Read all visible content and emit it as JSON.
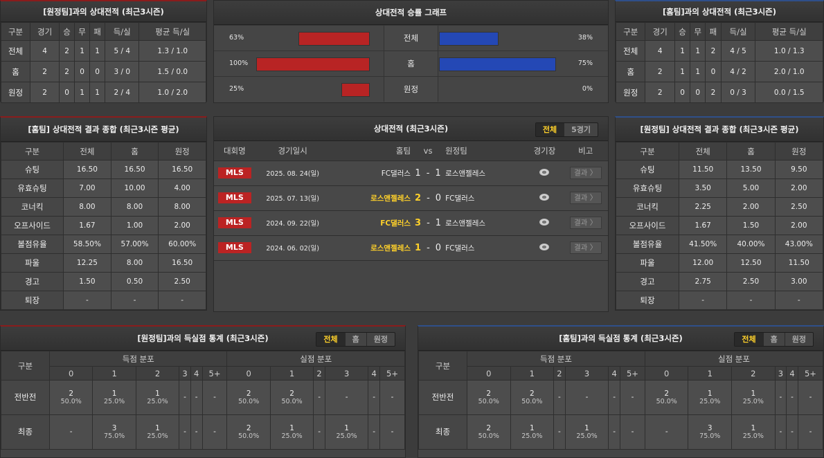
{
  "away_record": {
    "title": "[원정팀]과의 상대전적 (최근3시즌)",
    "headers": [
      "구분",
      "경기",
      "승",
      "무",
      "패",
      "득/실",
      "평균 득/실"
    ],
    "rows": [
      [
        "전체",
        "4",
        "2",
        "1",
        "1",
        "5 / 4",
        "1.3 / 1.0"
      ],
      [
        "홈",
        "2",
        "2",
        "0",
        "0",
        "3 / 0",
        "1.5 / 0.0"
      ],
      [
        "원정",
        "2",
        "0",
        "1",
        "1",
        "2 / 4",
        "1.0 / 2.0"
      ]
    ]
  },
  "home_record": {
    "title": "[홈팀]과의 상대전적 (최근3시즌)",
    "headers": [
      "구분",
      "경기",
      "승",
      "무",
      "패",
      "득/실",
      "평균 득/실"
    ],
    "rows": [
      [
        "전체",
        "4",
        "1",
        "1",
        "2",
        "4 / 5",
        "1.0 / 1.3"
      ],
      [
        "홈",
        "2",
        "1",
        "1",
        "0",
        "4 / 2",
        "2.0 / 1.0"
      ],
      [
        "원정",
        "2",
        "0",
        "0",
        "2",
        "0 / 3",
        "0.0 / 1.5"
      ]
    ]
  },
  "win_graph": {
    "title": "상대전적 승률 그래프",
    "colors": {
      "left": "#b82424",
      "right": "#2448b5"
    },
    "rows": [
      {
        "label": "전체",
        "left": 63,
        "left_text": "63%",
        "right": 38,
        "right_text": "38%"
      },
      {
        "label": "홈",
        "left": 100,
        "left_text": "100%",
        "right": 75,
        "right_text": "75%"
      },
      {
        "label": "원정",
        "left": 25,
        "left_text": "25%",
        "right": 0,
        "right_text": "0%"
      }
    ]
  },
  "home_summary": {
    "title": "[홈팀] 상대전적 결과 종합 (최근3시즌 평균)",
    "headers": [
      "구분",
      "전체",
      "홈",
      "원정"
    ],
    "rows": [
      [
        "슈팅",
        "16.50",
        "16.50",
        "16.50"
      ],
      [
        "유효슈팅",
        "7.00",
        "10.00",
        "4.00"
      ],
      [
        "코너킥",
        "8.00",
        "8.00",
        "8.00"
      ],
      [
        "오프사이드",
        "1.67",
        "1.00",
        "2.00"
      ],
      [
        "볼점유율",
        "58.50%",
        "57.00%",
        "60.00%"
      ],
      [
        "파울",
        "12.25",
        "8.00",
        "16.50"
      ],
      [
        "경고",
        "1.50",
        "0.50",
        "2.50"
      ],
      [
        "퇴장",
        "-",
        "-",
        "-"
      ]
    ]
  },
  "away_summary": {
    "title": "[원정팀] 상대전적 결과 종합 (최근3시즌 평균)",
    "headers": [
      "구분",
      "전체",
      "홈",
      "원정"
    ],
    "rows": [
      [
        "슈팅",
        "11.50",
        "13.50",
        "9.50"
      ],
      [
        "유효슈팅",
        "3.50",
        "5.00",
        "2.00"
      ],
      [
        "코너킥",
        "2.25",
        "2.00",
        "2.50"
      ],
      [
        "오프사이드",
        "1.67",
        "1.50",
        "2.00"
      ],
      [
        "볼점유율",
        "41.50%",
        "40.00%",
        "43.00%"
      ],
      [
        "파울",
        "12.00",
        "12.50",
        "11.50"
      ],
      [
        "경고",
        "2.75",
        "2.50",
        "3.00"
      ],
      [
        "퇴장",
        "-",
        "-",
        "-"
      ]
    ]
  },
  "matches": {
    "title": "상대전적 (최근3시즌)",
    "tabs": [
      "전체",
      "5경기"
    ],
    "active_tab": 0,
    "headers": {
      "league": "대회명",
      "date": "경기일시",
      "home": "홈팀",
      "vs": "vs",
      "away": "원정팀",
      "stadium": "경기장",
      "note": "비고"
    },
    "result_label": "결과 〉",
    "rows": [
      {
        "league": "MLS",
        "date": "2025. 08. 24(일)",
        "home": "FC댈러스",
        "home_score": "1",
        "sep": "-",
        "away_score": "1",
        "away": "로스앤젤레스",
        "winner": "none"
      },
      {
        "league": "MLS",
        "date": "2025. 07. 13(일)",
        "home": "로스앤젤레스",
        "home_score": "2",
        "sep": "-",
        "away_score": "0",
        "away": "FC댈러스",
        "winner": "home"
      },
      {
        "league": "MLS",
        "date": "2024. 09. 22(일)",
        "home": "FC댈러스",
        "home_score": "3",
        "sep": "-",
        "away_score": "1",
        "away": "로스앤젤레스",
        "winner": "home"
      },
      {
        "league": "MLS",
        "date": "2024. 06. 02(일)",
        "home": "로스앤젤레스",
        "home_score": "1",
        "sep": "-",
        "away_score": "0",
        "away": "FC댈러스",
        "winner": "home"
      }
    ]
  },
  "away_goals": {
    "title": "[원정팀]과의 득실점 통계 (최근3시즌)",
    "tabs": [
      "전체",
      "홈",
      "원정"
    ],
    "active_tab": 0,
    "label_header": "구분",
    "groups": [
      "득점 분포",
      "실점 분포"
    ],
    "buckets": [
      "0",
      "1",
      "2",
      "3",
      "4",
      "5+",
      "0",
      "1",
      "2",
      "3",
      "4",
      "5+"
    ],
    "rows": [
      {
        "label": "전반전",
        "cells": [
          [
            "2",
            "50.0%"
          ],
          [
            "1",
            "25.0%"
          ],
          [
            "1",
            "25.0%"
          ],
          [
            "-",
            ""
          ],
          [
            "-",
            ""
          ],
          [
            "-",
            ""
          ],
          [
            "2",
            "50.0%"
          ],
          [
            "2",
            "50.0%"
          ],
          [
            "-",
            ""
          ],
          [
            "-",
            ""
          ],
          [
            "-",
            ""
          ],
          [
            "-",
            ""
          ]
        ]
      },
      {
        "label": "최종",
        "cells": [
          [
            "-",
            ""
          ],
          [
            "3",
            "75.0%"
          ],
          [
            "1",
            "25.0%"
          ],
          [
            "-",
            ""
          ],
          [
            "-",
            ""
          ],
          [
            "-",
            ""
          ],
          [
            "2",
            "50.0%"
          ],
          [
            "1",
            "25.0%"
          ],
          [
            "-",
            ""
          ],
          [
            "1",
            "25.0%"
          ],
          [
            "-",
            ""
          ],
          [
            "-",
            ""
          ]
        ]
      }
    ]
  },
  "home_goals": {
    "title": "[홈팀]과의 득실점 통계 (최근3시즌)",
    "tabs": [
      "전체",
      "홈",
      "원정"
    ],
    "active_tab": 0,
    "label_header": "구분",
    "groups": [
      "득점 분포",
      "실점 분포"
    ],
    "buckets": [
      "0",
      "1",
      "2",
      "3",
      "4",
      "5+",
      "0",
      "1",
      "2",
      "3",
      "4",
      "5+"
    ],
    "rows": [
      {
        "label": "전반전",
        "cells": [
          [
            "2",
            "50.0%"
          ],
          [
            "2",
            "50.0%"
          ],
          [
            "-",
            ""
          ],
          [
            "-",
            ""
          ],
          [
            "-",
            ""
          ],
          [
            "-",
            ""
          ],
          [
            "2",
            "50.0%"
          ],
          [
            "1",
            "25.0%"
          ],
          [
            "1",
            "25.0%"
          ],
          [
            "-",
            ""
          ],
          [
            "-",
            ""
          ],
          [
            "-",
            ""
          ]
        ]
      },
      {
        "label": "최종",
        "cells": [
          [
            "2",
            "50.0%"
          ],
          [
            "1",
            "25.0%"
          ],
          [
            "-",
            ""
          ],
          [
            "1",
            "25.0%"
          ],
          [
            "-",
            ""
          ],
          [
            "-",
            ""
          ],
          [
            "-",
            ""
          ],
          [
            "3",
            "75.0%"
          ],
          [
            "1",
            "25.0%"
          ],
          [
            "-",
            ""
          ],
          [
            "-",
            ""
          ],
          [
            "-",
            ""
          ]
        ]
      }
    ]
  }
}
